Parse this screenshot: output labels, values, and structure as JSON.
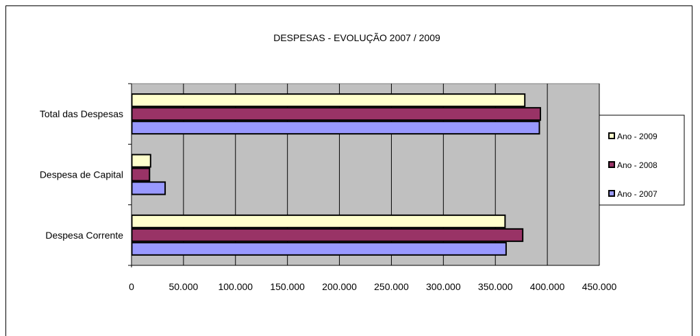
{
  "chart_data": {
    "type": "bar",
    "orientation": "horizontal",
    "title": "DESPESAS - EVOLUÇÃO 2007 / 2009",
    "categories": [
      "Total das Despesas",
      "Despesa de Capital",
      "Despesa Corrente"
    ],
    "series": [
      {
        "name": "Ano - 2009",
        "color": "#ffffcc",
        "values": [
          378000,
          18000,
          359000
        ]
      },
      {
        "name": "Ano - 2008",
        "color": "#993366",
        "values": [
          393000,
          17000,
          376000
        ]
      },
      {
        "name": "Ano - 2007",
        "color": "#9999ff",
        "values": [
          392000,
          32000,
          360000
        ]
      }
    ],
    "xlim": [
      0,
      450000
    ],
    "xticks": [
      "0",
      "50.000",
      "100.000",
      "150.000",
      "200.000",
      "250.000",
      "300.000",
      "350.000",
      "400.000",
      "450.000"
    ],
    "xtick_values": [
      0,
      50000,
      100000,
      150000,
      200000,
      250000,
      300000,
      350000,
      400000,
      450000
    ],
    "grid": "vertical",
    "plot_background": "#c0c0c0",
    "legend_position": "right"
  }
}
